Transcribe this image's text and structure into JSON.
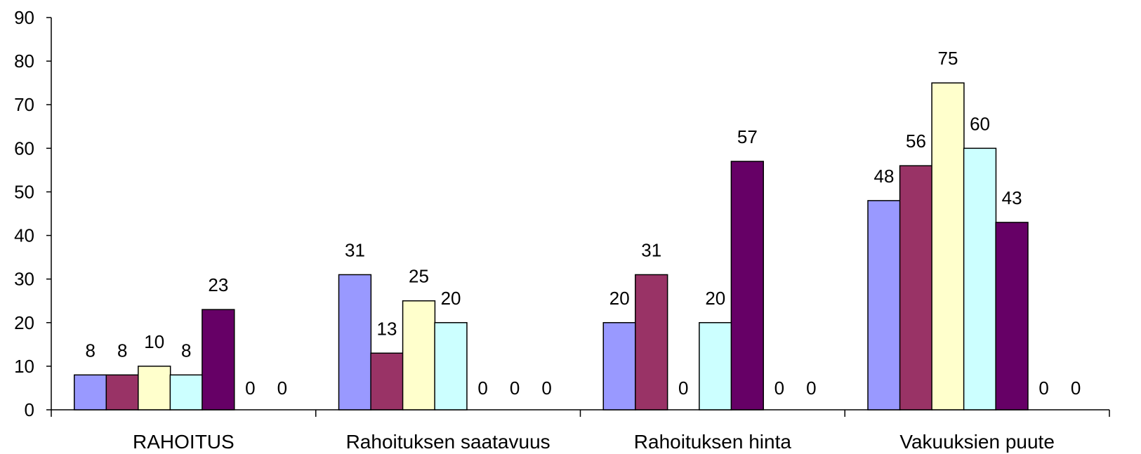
{
  "chart_data": {
    "type": "bar",
    "categories": [
      "RAHOITUS",
      "Rahoituksen saatavuus",
      "Rahoituksen hinta",
      "Vakuuksien puute"
    ],
    "series": [
      {
        "values": [
          8,
          31,
          20,
          48
        ],
        "color": "#9999ff"
      },
      {
        "values": [
          8,
          13,
          31,
          56
        ],
        "color": "#993366"
      },
      {
        "values": [
          10,
          25,
          0,
          75
        ],
        "color": "#ffffcc"
      },
      {
        "values": [
          8,
          20,
          20,
          60
        ],
        "color": "#ccffff"
      },
      {
        "values": [
          23,
          0,
          57,
          43
        ],
        "color": "#660066"
      },
      {
        "values": [
          0,
          0,
          0,
          0
        ],
        "color": "#ff8080"
      },
      {
        "values": [
          0,
          0,
          0,
          0
        ],
        "color": "#0066cc"
      }
    ],
    "title": "",
    "xlabel": "",
    "ylabel": "",
    "ylim": [
      0,
      90
    ],
    "yticks": [
      0,
      10,
      20,
      30,
      40,
      50,
      60,
      70,
      80,
      90
    ],
    "grid": false,
    "legend": "none"
  }
}
